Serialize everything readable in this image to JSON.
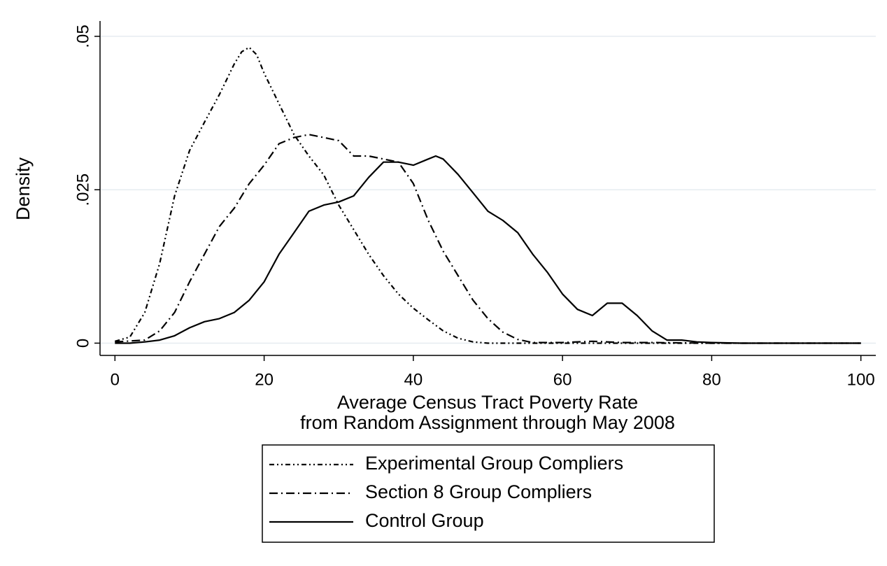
{
  "chart_data": {
    "type": "line",
    "xlabel": [
      "Average Census Tract Poverty Rate",
      "from Random Assignment through May 2008"
    ],
    "ylabel": "Density",
    "xlim": [
      -2,
      102
    ],
    "xticks": [
      0,
      20,
      40,
      60,
      80,
      100
    ],
    "ylim": [
      -0.002,
      0.0525
    ],
    "yticks": [
      0,
      {
        "value": 0.025,
        "label": ".025"
      },
      {
        "value": 0.05,
        "label": ".05"
      }
    ],
    "grid": true,
    "series": [
      {
        "name": "Experimental Group Compliers",
        "color": "#000000",
        "dash": "7 4 2 4 2 4",
        "x": [
          0,
          2,
          4,
          6,
          8,
          10,
          12,
          14,
          16,
          17,
          18,
          19,
          20,
          22,
          24,
          26,
          28,
          30,
          32,
          34,
          36,
          38,
          40,
          42,
          44,
          46,
          48,
          50,
          55,
          60,
          70,
          80,
          90,
          100
        ],
        "values": [
          0.0003,
          0.001,
          0.005,
          0.013,
          0.024,
          0.0314,
          0.036,
          0.0405,
          0.0455,
          0.0475,
          0.0482,
          0.047,
          0.044,
          0.039,
          0.034,
          0.0305,
          0.0274,
          0.0225,
          0.0185,
          0.0145,
          0.011,
          0.008,
          0.0057,
          0.0038,
          0.002,
          0.0008,
          0.0002,
          0,
          0,
          0,
          0,
          0,
          0,
          0
        ]
      },
      {
        "name": "Section 8 Group Compliers",
        "color": "#000000",
        "dash": "12 5 2 5",
        "x": [
          0,
          4,
          6,
          8,
          10,
          12,
          14,
          16,
          18,
          20,
          22,
          24,
          26,
          28,
          30,
          32,
          34,
          36,
          38,
          40,
          42,
          44,
          46,
          48,
          50,
          52,
          54,
          56,
          60,
          64,
          68,
          72,
          80,
          90,
          100
        ],
        "values": [
          0.0002,
          0.0005,
          0.002,
          0.005,
          0.01,
          0.0145,
          0.019,
          0.022,
          0.026,
          0.029,
          0.0325,
          0.0335,
          0.034,
          0.0335,
          0.033,
          0.0305,
          0.0305,
          0.03,
          0.0295,
          0.026,
          0.02,
          0.015,
          0.011,
          0.007,
          0.004,
          0.0018,
          0.0006,
          0.0001,
          0.0001,
          0.0003,
          0.0001,
          0.0001,
          0,
          0,
          0
        ]
      },
      {
        "name": "Control Group",
        "color": "#000000",
        "dash": "none",
        "x": [
          0,
          2,
          4,
          6,
          8,
          10,
          12,
          14,
          16,
          18,
          20,
          22,
          24,
          26,
          28,
          30,
          32,
          34,
          36,
          38,
          40,
          42,
          43,
          44,
          46,
          48,
          50,
          52,
          54,
          56,
          58,
          60,
          62,
          64,
          66,
          68,
          70,
          72,
          74,
          76,
          78,
          80,
          84,
          90,
          100
        ],
        "values": [
          0,
          0,
          0.0002,
          0.0005,
          0.0012,
          0.0025,
          0.0035,
          0.004,
          0.005,
          0.007,
          0.01,
          0.0145,
          0.018,
          0.0215,
          0.0225,
          0.023,
          0.024,
          0.027,
          0.0295,
          0.0295,
          0.029,
          0.03,
          0.0305,
          0.03,
          0.0275,
          0.0245,
          0.0215,
          0.02,
          0.018,
          0.0145,
          0.0115,
          0.008,
          0.0055,
          0.0045,
          0.0065,
          0.0065,
          0.0045,
          0.002,
          0.0005,
          0.0005,
          0.0002,
          0.0001,
          0,
          0,
          0
        ]
      }
    ]
  }
}
